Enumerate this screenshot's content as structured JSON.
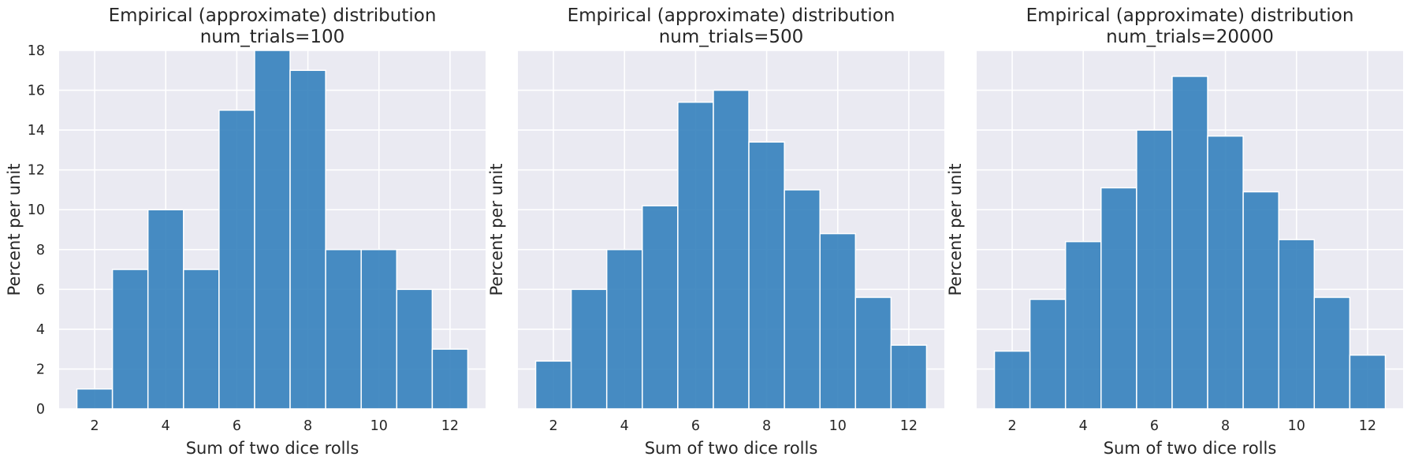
{
  "chart_data": [
    {
      "type": "bar",
      "title": "Empirical (approximate) distribution\nnum_trials=100",
      "xlabel": "Sum of two dice rolls",
      "ylabel": "Percent per unit",
      "categories": [
        2,
        3,
        4,
        5,
        6,
        7,
        8,
        9,
        10,
        11,
        12
      ],
      "values": [
        1,
        7,
        10,
        7,
        15,
        18,
        17,
        8,
        8,
        6,
        3
      ],
      "xlim": [
        1,
        13
      ],
      "ylim": [
        0,
        18
      ],
      "xticks": [
        2,
        4,
        6,
        8,
        10,
        12
      ],
      "yticks": [
        0,
        2,
        4,
        6,
        8,
        10,
        12,
        14,
        16,
        18
      ],
      "show_yticklabels": true,
      "grid": true
    },
    {
      "type": "bar",
      "title": "Empirical (approximate) distribution\nnum_trials=500",
      "xlabel": "Sum of two dice rolls",
      "ylabel": "Percent per unit",
      "categories": [
        2,
        3,
        4,
        5,
        6,
        7,
        8,
        9,
        10,
        11,
        12
      ],
      "values": [
        2.4,
        6,
        8,
        10.2,
        15.4,
        16,
        13.4,
        11,
        8.8,
        5.6,
        3.2
      ],
      "xlim": [
        1,
        13
      ],
      "ylim": [
        0,
        18
      ],
      "xticks": [
        2,
        4,
        6,
        8,
        10,
        12
      ],
      "yticks": [
        0,
        2,
        4,
        6,
        8,
        10,
        12,
        14,
        16,
        18
      ],
      "show_yticklabels": false,
      "grid": true
    },
    {
      "type": "bar",
      "title": "Empirical (approximate) distribution\nnum_trials=20000",
      "xlabel": "Sum of two dice rolls",
      "ylabel": "Percent per unit",
      "categories": [
        2,
        3,
        4,
        5,
        6,
        7,
        8,
        9,
        10,
        11,
        12
      ],
      "values": [
        2.9,
        5.5,
        8.4,
        11.1,
        14,
        16.7,
        13.7,
        10.9,
        8.5,
        5.6,
        2.7
      ],
      "xlim": [
        1,
        13
      ],
      "ylim": [
        0,
        18
      ],
      "xticks": [
        2,
        4,
        6,
        8,
        10,
        12
      ],
      "yticks": [
        0,
        2,
        4,
        6,
        8,
        10,
        12,
        14,
        16,
        18
      ],
      "show_yticklabels": false,
      "grid": true
    }
  ],
  "colors": {
    "bar": "#2f7dbb",
    "plot_background": "#eaeaf2",
    "grid": "#ffffff",
    "text": "#262626"
  }
}
